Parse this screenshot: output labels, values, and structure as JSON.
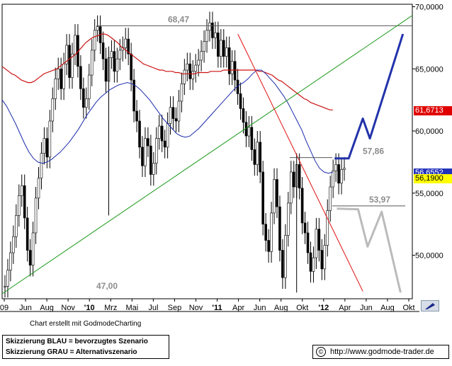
{
  "chart_data": {
    "type": "candlestick",
    "ylim": [
      46500,
      70200
    ],
    "y_ticks": [
      {
        "value": 70000,
        "label": "70,0000"
      },
      {
        "value": 65000,
        "label": "65,0000"
      },
      {
        "value": 60000,
        "label": "60,0000"
      },
      {
        "value": 55000,
        "label": "55,0000"
      },
      {
        "value": 50000,
        "label": "50,0000"
      }
    ],
    "x_ticks": [
      "09",
      "Jun",
      "Aug",
      "Nov",
      "'10",
      "Mrz",
      "Mai",
      "Jul",
      "Sep",
      "Nov",
      "'11",
      "Apr",
      "Jun",
      "Aug",
      "Okt",
      "'12",
      "Apr",
      "Jun",
      "Aug",
      "Okt"
    ],
    "x_ticks_bold": [
      "'10",
      "'11",
      "'12"
    ],
    "annotations": [
      {
        "label": "68,47",
        "value": 68470
      },
      {
        "label": "57,86",
        "value": 57860
      },
      {
        "label": "53,97",
        "value": 53970
      },
      {
        "label": "47,00",
        "value": 47000
      }
    ],
    "value_badges": [
      {
        "label": "61,6713",
        "value": 61671,
        "background": "#e00000",
        "color": "#ffffff"
      },
      {
        "label": "56,6552",
        "value": 56655,
        "background": "#2233bb",
        "color": "#ffffff"
      },
      {
        "label": "56,1900",
        "value": 56190,
        "background": "#ffff00",
        "color": "#000000"
      }
    ],
    "price_weekly": [
      47500,
      48800,
      50200,
      51500,
      53200,
      54800,
      55600,
      53000,
      50400,
      49200,
      51800,
      54600,
      56200,
      58200,
      59400,
      57900,
      60800,
      62600,
      64200,
      65000,
      63400,
      65400,
      66900,
      64300,
      66200,
      67700,
      65200,
      63400,
      61900,
      62600,
      64500,
      66500,
      68100,
      68400,
      67100,
      65800,
      64000,
      65900,
      66400,
      64800,
      65800,
      66500,
      66700,
      67400,
      66200,
      64100,
      61600,
      60800,
      58700,
      57200,
      59400,
      58800,
      56500,
      57400,
      59400,
      60400,
      59200,
      58700,
      60600,
      61900,
      61000,
      60800,
      62400,
      63800,
      64900,
      65400,
      64200,
      64800,
      65300,
      65700,
      66400,
      67200,
      68100,
      68700,
      67500,
      67900,
      66000,
      67300,
      66000,
      66700,
      64600,
      65600,
      64100,
      63000,
      61800,
      60700,
      59600,
      60300,
      58500,
      57300,
      59100,
      56700,
      52500,
      51200,
      50300,
      53400,
      56100,
      53900,
      50400,
      48200,
      51600,
      54200,
      56700,
      55500,
      57300,
      55400,
      52600,
      51800,
      50200,
      48700,
      49800,
      52100,
      50400,
      48900,
      50800,
      53600,
      55500,
      56800,
      57300,
      55800,
      56900,
      57000
    ],
    "candles": [
      {
        "o": 48500,
        "h": 58000,
        "l": 47000,
        "c": 55000
      },
      {
        "o": 54800,
        "h": 56500,
        "l": 50500,
        "c": 53000
      },
      {
        "o": 60500,
        "h": 62600,
        "l": 57000,
        "c": 61800
      },
      {
        "o": 61500,
        "h": 63200,
        "l": 59200,
        "c": 60200
      },
      {
        "o": 57500,
        "h": 60100,
        "l": 53500,
        "c": 55000
      },
      {
        "o": 56000,
        "h": 59200,
        "l": 51500,
        "c": 55800
      },
      {
        "o": 50500,
        "h": 55200,
        "l": 48500,
        "c": 49500
      },
      {
        "o": 53500,
        "h": 57800,
        "l": 48100,
        "c": 52000
      }
    ],
    "candle_spikes": [
      {
        "index": 37,
        "low": 53200
      },
      {
        "index": 104,
        "low": 47000
      }
    ],
    "ma_slow": [
      65200,
      65000,
      64800,
      64600,
      64500,
      64300,
      64100,
      64000,
      63900,
      63900,
      64000,
      64200,
      64400,
      64600,
      64700,
      64800,
      64900,
      65000,
      65200,
      65400,
      65600,
      65800,
      66000,
      66200,
      66500,
      66800,
      67100,
      67300,
      67500,
      67600,
      67700,
      67800,
      67800,
      67700,
      67500,
      67300,
      67100,
      66800,
      66600,
      66400,
      66200,
      66000,
      65800,
      65600,
      65400,
      65300,
      65200,
      65100,
      65000,
      64900,
      64900,
      64800,
      64800,
      64800,
      64700,
      64700,
      64600,
      64600,
      64600,
      64600,
      64600,
      64700,
      64700,
      64700,
      64700,
      64800,
      64800,
      64800,
      64800,
      64900,
      64900,
      64900,
      64900,
      64900,
      64900,
      64900,
      64900,
      64900,
      64900,
      64900,
      64800,
      64800,
      64700,
      64600,
      64500,
      64300,
      64100,
      64000,
      63800,
      63600,
      63400,
      63200,
      63000,
      62800,
      62600,
      62500,
      62300,
      62200,
      62100,
      62000,
      61900,
      61800,
      61700,
      61700
    ],
    "ma_fast": [
      62500,
      62000,
      61300,
      60600,
      59800,
      59000,
      58300,
      57800,
      57500,
      57400,
      57500,
      57700,
      58000,
      58300,
      58700,
      59100,
      59600,
      60100,
      60700,
      61300,
      61800,
      62300,
      62700,
      63000,
      63300,
      63500,
      63700,
      63800,
      63900,
      63800,
      63600,
      63300,
      62900,
      62500,
      62000,
      61500,
      61000,
      60600,
      60200,
      59800,
      59600,
      59500,
      59600,
      59900,
      60200,
      60600,
      61000,
      61400,
      61800,
      62200,
      62600,
      63000,
      63400,
      63700,
      63900,
      64200,
      64600,
      64900,
      64900,
      64600,
      64200,
      63800,
      63300,
      62800,
      62200,
      61500,
      60800,
      60100,
      59200,
      58400,
      57600,
      57000,
      56700,
      56600,
      56700
    ],
    "trendlines": [
      {
        "name": "resistance",
        "color": "#555555",
        "from": {
          "x": 40,
          "y": 68470
        },
        "to": {
          "x": 174,
          "y": 68470
        }
      },
      {
        "name": "uptrend",
        "color": "#1a9a1a",
        "from": {
          "x": 0,
          "y": 46900
        },
        "to": {
          "x": 174,
          "y": 69300
        }
      },
      {
        "name": "downtrend",
        "color": "#e01010",
        "from": {
          "x": 100,
          "y": 67800
        },
        "to": {
          "x": 153,
          "y": 47100
        }
      },
      {
        "name": "support-53",
        "color": "#555555",
        "from": {
          "x": 140,
          "y": 53970
        },
        "to": {
          "x": 171,
          "y": 53970
        }
      },
      {
        "name": "level-57",
        "color": "#555555",
        "from": {
          "x": 122,
          "y": 57860
        },
        "to": {
          "x": 140,
          "y": 57860
        }
      }
    ],
    "scenario_blue": {
      "color": "#2233aa",
      "points": [
        {
          "x": 141,
          "y": 57800
        },
        {
          "x": 147,
          "y": 57800
        },
        {
          "x": 153,
          "y": 61000
        },
        {
          "x": 156,
          "y": 59400
        },
        {
          "x": 170,
          "y": 67800
        }
      ]
    },
    "scenario_gray": {
      "color": "#bbbbbb",
      "points": [
        {
          "x": 142,
          "y": 53750
        },
        {
          "x": 151,
          "y": 53700
        },
        {
          "x": 155,
          "y": 50700
        },
        {
          "x": 161,
          "y": 53500
        },
        {
          "x": 169,
          "y": 47000
        }
      ]
    }
  },
  "credit": "Chart erstellt mit GodmodeCharting",
  "legend": {
    "line1": "Skizzierung BLAU = bevorzugtes Szenario",
    "line2": "Skizzierung GRAU = Alternativszenario"
  },
  "source": {
    "symbol": "©",
    "url": "http://www.godmode-trader.de"
  }
}
